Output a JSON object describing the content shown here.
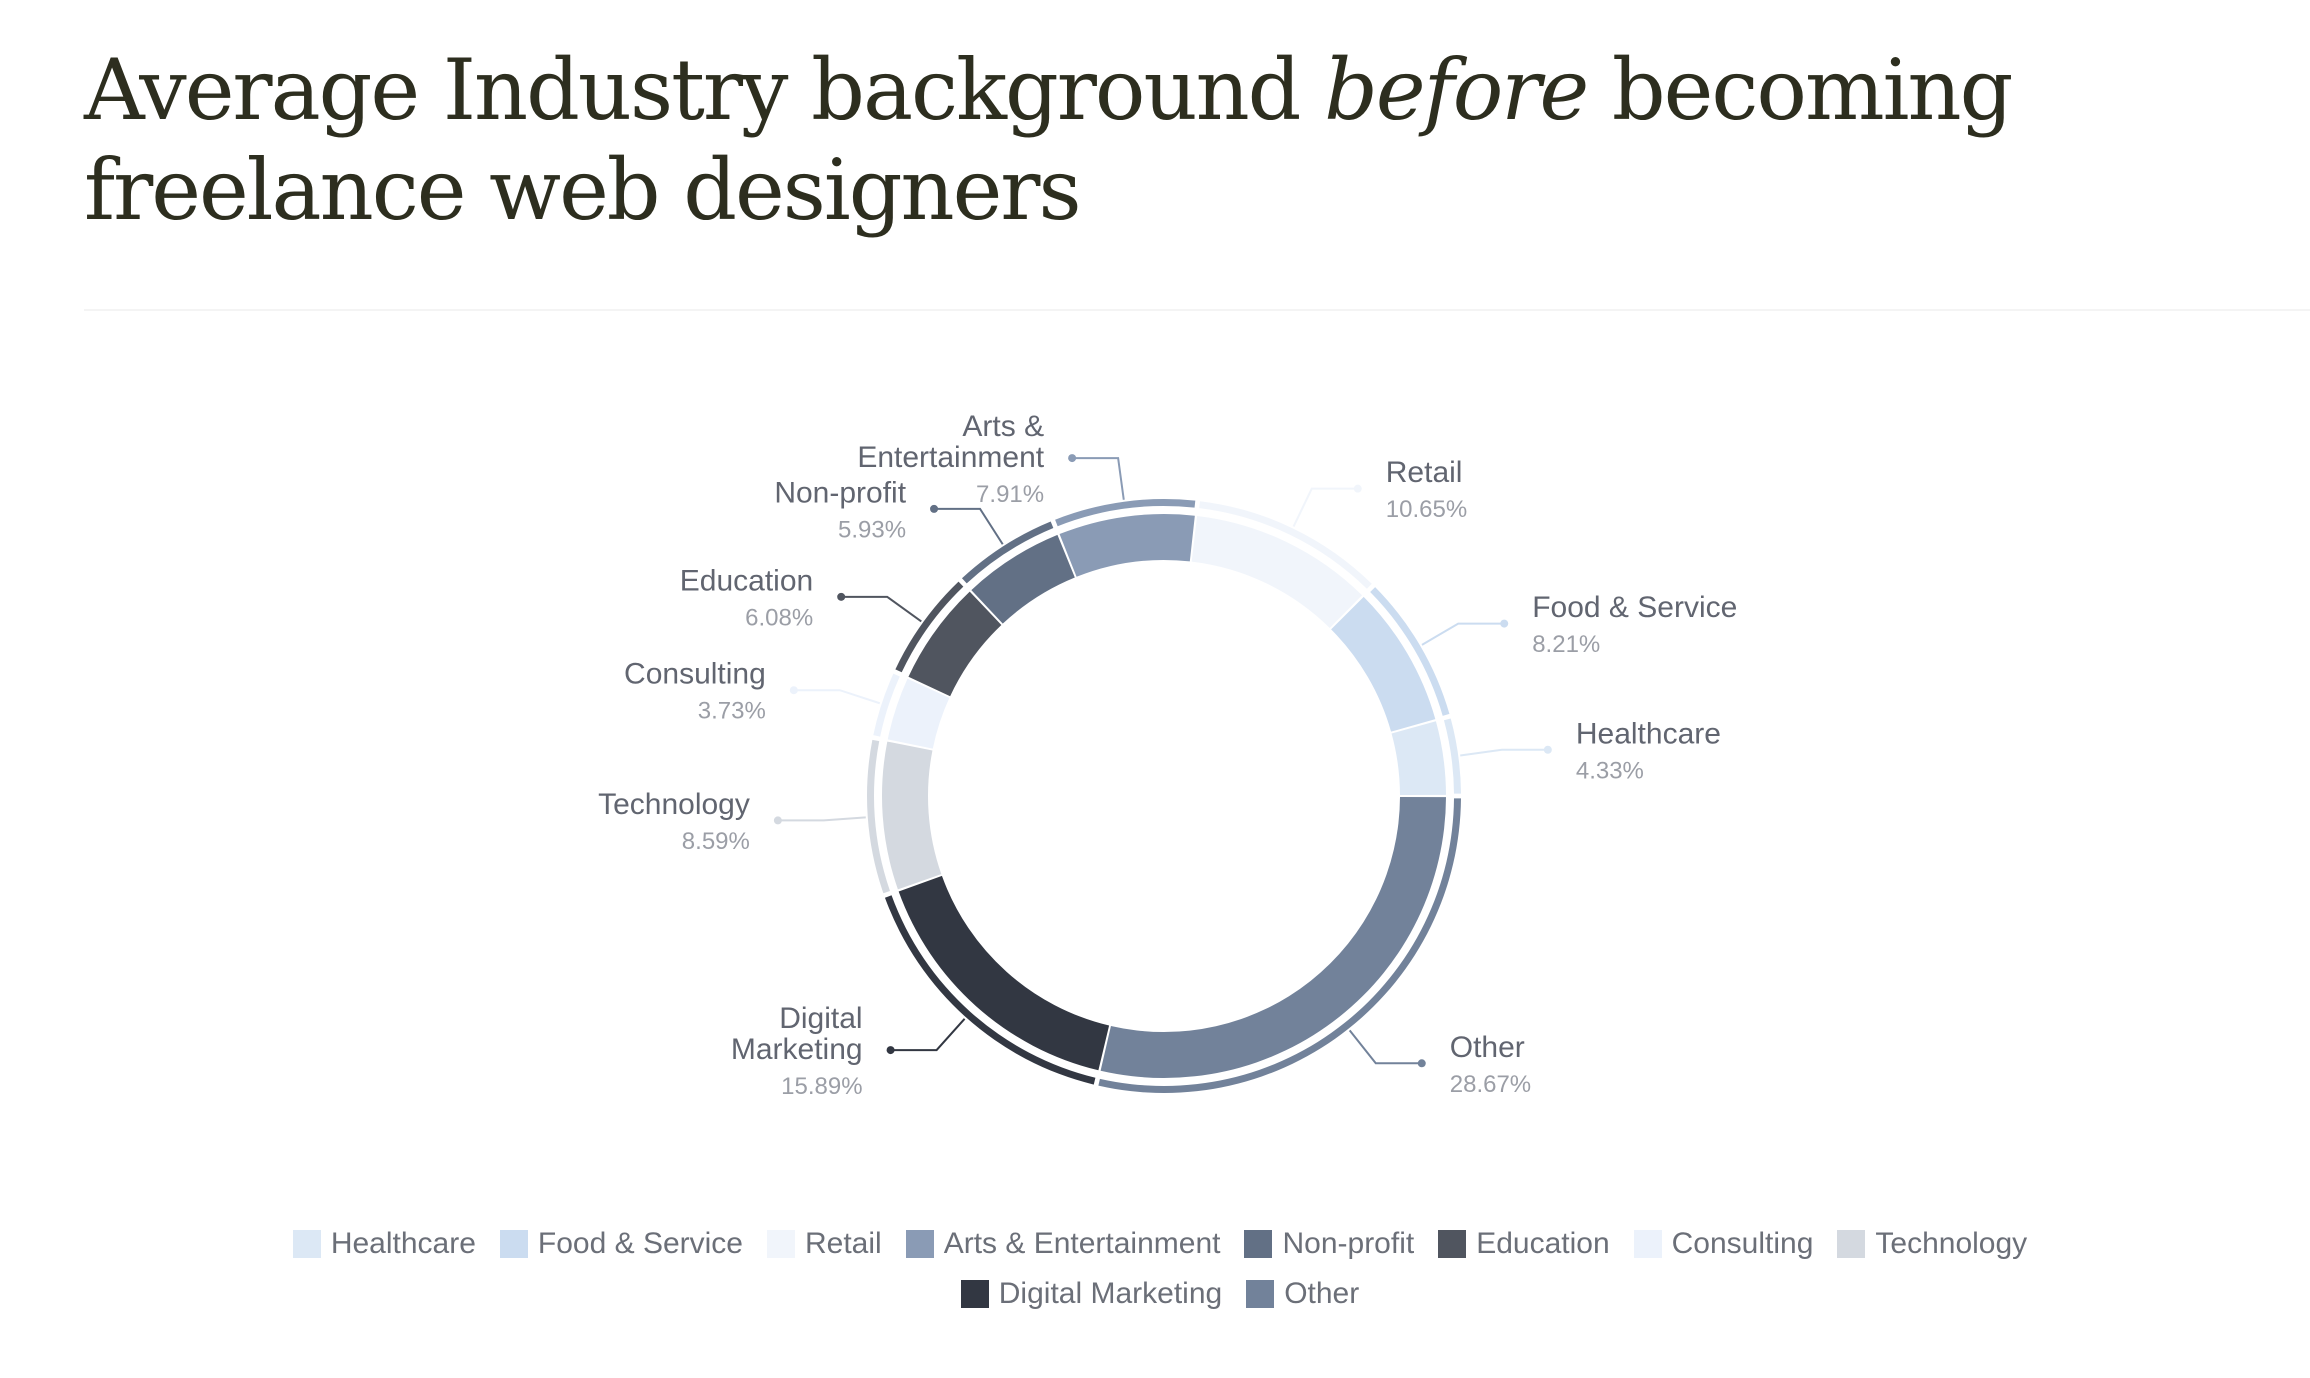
{
  "title": {
    "before_emphasis": "Average Industry background ",
    "emphasis": "before",
    "after_emphasis": " becoming freelance web designers"
  },
  "chart_data": {
    "type": "pie",
    "subtype": "donut",
    "title": "Average Industry background before becoming freelance web designers",
    "value_suffix": "%",
    "legend_placement": "bottom-center",
    "series": [
      {
        "name": "Healthcare",
        "label_lines": [
          "Healthcare"
        ],
        "value": 4.33,
        "display": "4.33%",
        "color": "#dce8f5"
      },
      {
        "name": "Food & Service",
        "label_lines": [
          "Food & Service"
        ],
        "value": 8.21,
        "display": "8.21%",
        "color": "#cbdcf0"
      },
      {
        "name": "Retail",
        "label_lines": [
          "Retail"
        ],
        "value": 10.65,
        "display": "10.65%",
        "color": "#f1f5fb"
      },
      {
        "name": "Arts & Entertainment",
        "label_lines": [
          "Arts &",
          "Entertainment"
        ],
        "value": 7.91,
        "display": "7.91%",
        "color": "#8a9bb5"
      },
      {
        "name": "Non-profit",
        "label_lines": [
          "Non-profit"
        ],
        "value": 5.93,
        "display": "5.93%",
        "color": "#627085"
      },
      {
        "name": "Education",
        "label_lines": [
          "Education"
        ],
        "value": 6.08,
        "display": "6.08%",
        "color": "#50555f"
      },
      {
        "name": "Consulting",
        "label_lines": [
          "Consulting"
        ],
        "value": 3.73,
        "display": "3.73%",
        "color": "#ecf2fb"
      },
      {
        "name": "Technology",
        "label_lines": [
          "Technology"
        ],
        "value": 8.59,
        "display": "8.59%",
        "color": "#d4d9e0"
      },
      {
        "name": "Digital Marketing",
        "label_lines": [
          "Digital",
          "Marketing"
        ],
        "value": 15.89,
        "display": "15.89%",
        "color": "#323742"
      },
      {
        "name": "Other",
        "label_lines": [
          "Other"
        ],
        "value": 28.67,
        "display": "28.67%",
        "color": "#72829a"
      }
    ]
  }
}
